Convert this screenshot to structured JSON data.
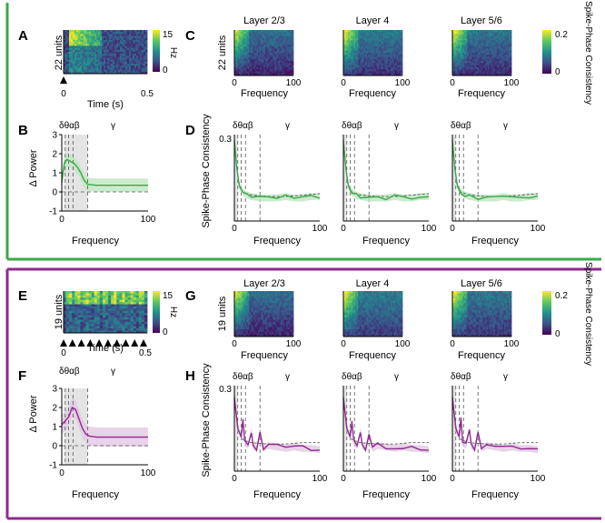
{
  "colors": {
    "green": "#3aa84a",
    "green_band": "#bfe6c0",
    "purple": "#8e2a8e",
    "purple_band": "#e2c8e2",
    "shade": "#d9d9d9",
    "dashed": "#555555"
  },
  "top_section": {
    "accent": "green",
    "panel_A": {
      "letter": "A",
      "ylabel": "22 units",
      "xlabel": "Time (s)",
      "xticks": [
        "0",
        "0.5"
      ],
      "colorbar_ticks": [
        "15",
        "0"
      ],
      "colorbar_label": "Hz",
      "stimulus_markers": 1
    },
    "panel_B": {
      "letter": "B",
      "ylabel": "Δ Power",
      "xlabel": "Frequency",
      "yticks": [
        "3",
        "2",
        "1",
        "0",
        "-1"
      ],
      "xticks": [
        "0",
        "100"
      ],
      "band_labels": [
        "δθαβ",
        "γ"
      ]
    },
    "panel_C": {
      "letter": "C",
      "ylabel": "22 units",
      "titles": [
        "Layer 2/3",
        "Layer 4",
        "Layer 5/6"
      ],
      "xlabel": "Frequency",
      "xticks": [
        "0",
        "100"
      ],
      "colorbar_ticks": [
        "0.2",
        "0"
      ],
      "colorbar_label": "Spike-Phase Consistency"
    },
    "panel_D": {
      "letter": "D",
      "ylabel": "Spike-Phase Consistency",
      "ytick": "0.3",
      "xlabel": "Frequency",
      "xticks": [
        "0",
        "100"
      ],
      "band_labels": [
        "δθαβ",
        "γ"
      ]
    }
  },
  "bottom_section": {
    "accent": "purple",
    "panel_E": {
      "letter": "E",
      "ylabel": "19 units",
      "xlabel": "Time (s)",
      "xticks": [
        "0",
        "0.5"
      ],
      "colorbar_ticks": [
        "15",
        "0"
      ],
      "colorbar_label": "Hz",
      "stimulus_markers": 10
    },
    "panel_F": {
      "letter": "F",
      "ylabel": "Δ Power",
      "xlabel": "Frequency",
      "yticks": [
        "3",
        "2",
        "1",
        "0",
        "-1"
      ],
      "xticks": [
        "0",
        "100"
      ],
      "band_labels": [
        "δθαβ",
        "γ"
      ]
    },
    "panel_G": {
      "letter": "G",
      "ylabel": "19 units",
      "titles": [
        "Layer 2/3",
        "Layer 4",
        "Layer 5/6"
      ],
      "xlabel": "Frequency",
      "xticks": [
        "0",
        "100"
      ],
      "colorbar_ticks": [
        "0.2",
        "0"
      ],
      "colorbar_label": "Spike-Phase Consistency"
    },
    "panel_H": {
      "letter": "H",
      "ylabel": "Spike-Phase Consistency",
      "ytick": "0.3",
      "xlabel": "Frequency",
      "xticks": [
        "0",
        "100"
      ],
      "band_labels": [
        "δθαβ",
        "γ"
      ]
    }
  },
  "chart_data": [
    {
      "id": "B",
      "type": "line",
      "title": "",
      "xlabel": "Frequency",
      "ylabel": "Δ Power",
      "xlim": [
        0,
        100
      ],
      "ylim": [
        -1,
        3
      ],
      "shaded_band_x": [
        3,
        30
      ],
      "band_edges": [
        4,
        8,
        13,
        30
      ],
      "series": [
        {
          "name": "mean",
          "color": "green",
          "x": [
            0,
            3,
            6,
            10,
            14,
            18,
            22,
            26,
            30,
            40,
            60,
            80,
            100
          ],
          "y": [
            0.5,
            1.5,
            1.7,
            1.6,
            1.5,
            1.3,
            1.0,
            0.6,
            0.4,
            0.35,
            0.35,
            0.35,
            0.35
          ],
          "ci": 0.35
        }
      ],
      "reference_line_y": 0
    },
    {
      "id": "F",
      "type": "line",
      "title": "",
      "xlabel": "Frequency",
      "ylabel": "Δ Power",
      "xlim": [
        0,
        100
      ],
      "ylim": [
        -1,
        3
      ],
      "shaded_band_x": [
        3,
        30
      ],
      "band_edges": [
        4,
        8,
        13,
        30
      ],
      "series": [
        {
          "name": "mean",
          "color": "purple",
          "x": [
            0,
            4,
            8,
            12,
            16,
            20,
            24,
            28,
            32,
            40,
            60,
            80,
            100
          ],
          "y": [
            1.1,
            1.3,
            1.5,
            2.0,
            1.9,
            1.4,
            0.9,
            0.6,
            0.5,
            0.45,
            0.45,
            0.45,
            0.45
          ],
          "ci": 0.5
        }
      ],
      "reference_line_y": 0
    },
    {
      "id": "D",
      "type": "line",
      "xlabel": "Frequency",
      "ylabel": "Spike-Phase Consistency",
      "xlim": [
        0,
        100
      ],
      "ylim": [
        0,
        0.3
      ],
      "band_edges": [
        4,
        8,
        13,
        30
      ],
      "subplots": [
        "Layer 2/3",
        "Layer 4",
        "Layer 5/6"
      ],
      "series": [
        {
          "name": "data",
          "color": "green",
          "x": [
            0,
            3,
            6,
            10,
            15,
            20,
            30,
            40,
            50,
            60,
            70,
            80,
            90,
            100
          ],
          "y": [
            0.28,
            0.18,
            0.12,
            0.1,
            0.09,
            0.085,
            0.08,
            0.08,
            0.08,
            0.085,
            0.08,
            0.08,
            0.085,
            0.085
          ]
        },
        {
          "name": "shuffle",
          "color": "dashed",
          "x": [
            0,
            5,
            10,
            20,
            40,
            60,
            80,
            100
          ],
          "y": [
            0.26,
            0.13,
            0.1,
            0.09,
            0.085,
            0.085,
            0.09,
            0.095
          ]
        }
      ]
    },
    {
      "id": "H",
      "type": "line",
      "xlabel": "Frequency",
      "ylabel": "Spike-Phase Consistency",
      "xlim": [
        0,
        100
      ],
      "ylim": [
        0,
        0.3
      ],
      "band_edges": [
        4,
        8,
        13,
        30
      ],
      "subplots": [
        "Layer 2/3",
        "Layer 4",
        "Layer 5/6"
      ],
      "series": [
        {
          "name": "data",
          "color": "purple",
          "x": [
            0,
            4,
            8,
            10,
            12,
            16,
            20,
            22,
            26,
            30,
            34,
            40,
            50,
            60,
            70,
            80,
            90,
            100
          ],
          "y": [
            0.26,
            0.15,
            0.12,
            0.18,
            0.1,
            0.09,
            0.14,
            0.09,
            0.08,
            0.13,
            0.08,
            0.09,
            0.085,
            0.08,
            0.085,
            0.08,
            0.08,
            0.075
          ]
        },
        {
          "name": "shuffle",
          "color": "dashed",
          "x": [
            0,
            5,
            10,
            20,
            40,
            60,
            80,
            100
          ],
          "y": [
            0.24,
            0.14,
            0.11,
            0.1,
            0.095,
            0.095,
            0.1,
            0.1
          ]
        }
      ]
    }
  ]
}
